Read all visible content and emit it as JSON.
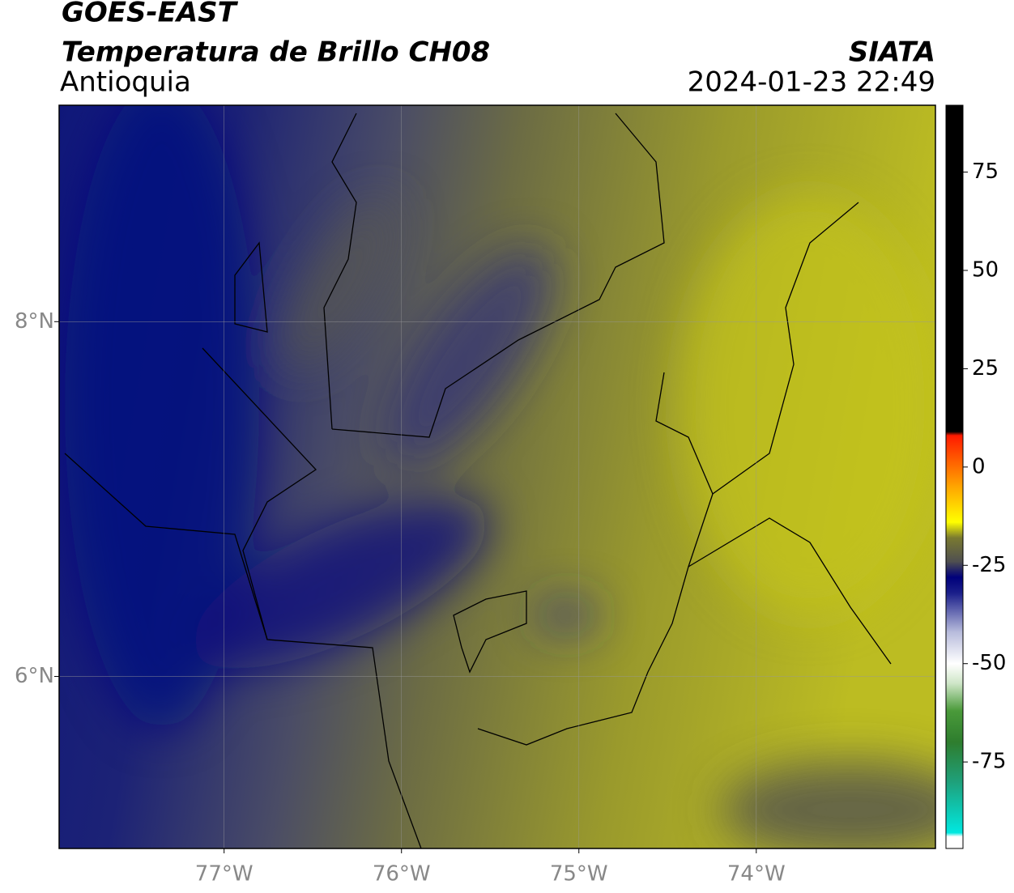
{
  "header": {
    "title": "GOES-EAST",
    "subtitle": "Temperatura de Brillo CH08",
    "region": "Antioquia",
    "source": "SIATA",
    "datetime": "2024-01-23 22:49"
  },
  "map": {
    "xlim": [
      -77.93,
      -72.99
    ],
    "ylim": [
      5.03,
      9.22
    ],
    "xticks": [
      {
        "value": -77,
        "label": "77°W"
      },
      {
        "value": -76,
        "label": "76°W"
      },
      {
        "value": -75,
        "label": "75°W"
      },
      {
        "value": -74,
        "label": "74°W"
      }
    ],
    "yticks": [
      {
        "value": 6,
        "label": "6°N"
      },
      {
        "value": 8,
        "label": "8°N"
      }
    ],
    "grid": true
  },
  "colorbar": {
    "ylim": [
      -97,
      92
    ],
    "yticks": [
      -75,
      -50,
      -25,
      0,
      25,
      50,
      75
    ],
    "colormap": [
      [
        -97,
        "#ffffff"
      ],
      [
        -94,
        "#ffffff"
      ],
      [
        -93,
        "#00e8e0"
      ],
      [
        -80,
        "#1fa07a"
      ],
      [
        -70,
        "#2e7d2e"
      ],
      [
        -62,
        "#4a9a3a"
      ],
      [
        -55,
        "#cfe6c8"
      ],
      [
        -50,
        "#ffffff"
      ],
      [
        -42,
        "#b8bcdc"
      ],
      [
        -32,
        "#1a1e8a"
      ],
      [
        -28,
        "#00007a"
      ],
      [
        -24,
        "#505050"
      ],
      [
        -18,
        "#7a7a30"
      ],
      [
        -14,
        "#ffff00"
      ],
      [
        -5,
        "#ffa500"
      ],
      [
        8,
        "#ff1a00"
      ],
      [
        9,
        "#000000"
      ],
      [
        92,
        "#000000"
      ]
    ]
  }
}
